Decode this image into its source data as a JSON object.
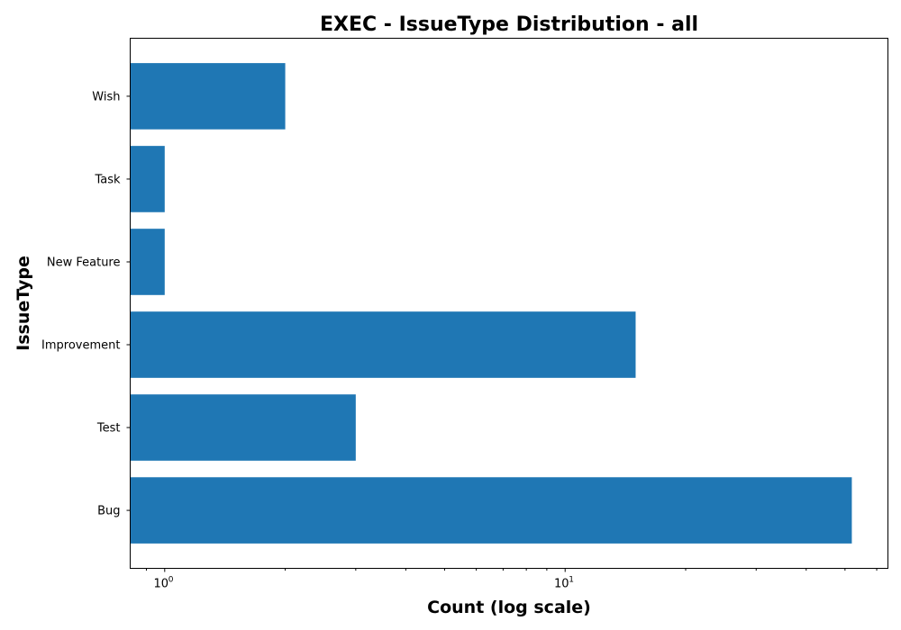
{
  "chart_data": {
    "type": "bar",
    "orientation": "horizontal",
    "title": "EXEC - IssueType Distribution - all",
    "xlabel": "Count (log scale)",
    "ylabel": "IssueType",
    "x_scale": "log",
    "xlim": [
      0.82,
      64
    ],
    "x_ticks": [
      {
        "value": 1,
        "base": "10",
        "exponent": "0"
      },
      {
        "value": 10,
        "base": "10",
        "exponent": "1"
      }
    ],
    "categories": [
      "Bug",
      "Test",
      "Improvement",
      "New Feature",
      "Task",
      "Wish"
    ],
    "values": [
      52,
      3,
      15,
      1,
      1,
      2
    ],
    "bar_color": "#1f77b4",
    "grid": false,
    "legend": "none"
  }
}
